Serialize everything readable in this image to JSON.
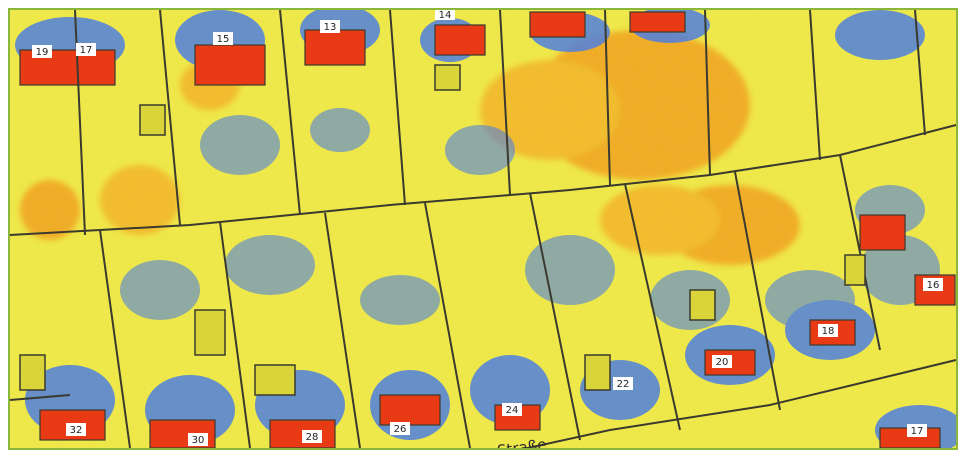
{
  "map": {
    "colors": {
      "background": "#eee94a",
      "high": "#f0a320",
      "roof_hot": "#e83a15",
      "shade": "#4f7fe0",
      "lines": "#3a3a2e",
      "frame": "#8ab73a"
    },
    "street_name": "Straße",
    "house_numbers": [
      "19",
      "17",
      "15",
      "13",
      "14",
      "22",
      "24",
      "26",
      "28",
      "30",
      "32",
      "20",
      "18",
      "16",
      "17"
    ]
  }
}
